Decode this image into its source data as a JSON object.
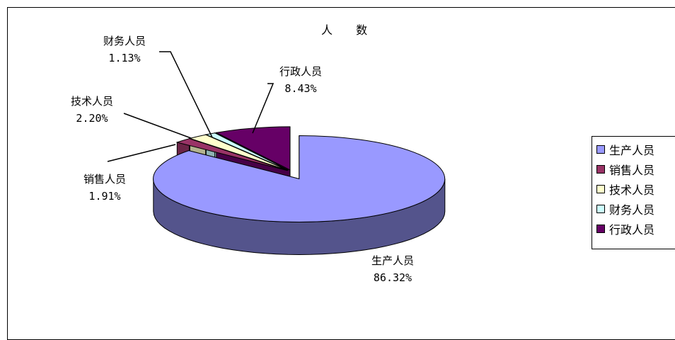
{
  "chart_data": {
    "type": "pie",
    "title": "人 数",
    "categories": [
      "生产人员",
      "销售人员",
      "技术人员",
      "财务人员",
      "行政人员"
    ],
    "values": [
      86.32,
      1.91,
      2.2,
      1.13,
      8.43
    ],
    "value_labels": [
      "86.32%",
      "1.91%",
      "2.20%",
      "1.13%",
      "8.43%"
    ],
    "colors": [
      "#9999ff",
      "#993366",
      "#ffffcc",
      "#ccffff",
      "#660066"
    ],
    "exploded": "生产人员",
    "style": "3d",
    "legend_position": "right"
  }
}
